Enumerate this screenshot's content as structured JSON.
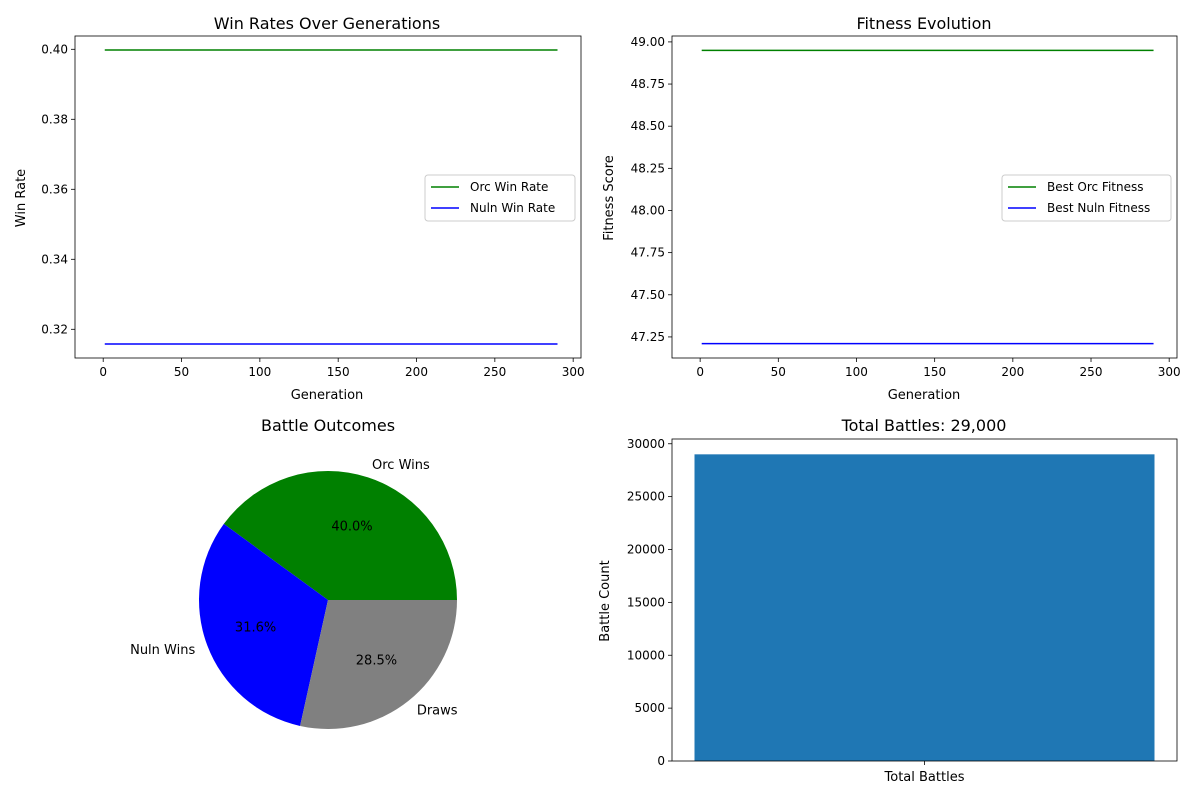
{
  "chart_data": [
    {
      "type": "line",
      "title": "Win Rates Over Generations",
      "xlabel": "Generation",
      "ylabel": "Win Rate",
      "xlim": [
        -18,
        305
      ],
      "ylim": [
        0.3118,
        0.4038
      ],
      "xticks": [
        0,
        50,
        100,
        150,
        200,
        250,
        300
      ],
      "yticks": [
        0.32,
        0.34,
        0.36,
        0.38,
        0.4
      ],
      "ytick_labels": [
        "0.32",
        "0.34",
        "0.36",
        "0.38",
        "0.40"
      ],
      "legend": "center-right",
      "series": [
        {
          "name": "Orc Win Rate",
          "color": "#008000",
          "x": [
            1,
            290
          ],
          "y": [
            0.3998,
            0.3998
          ]
        },
        {
          "name": "Nuln Win Rate",
          "color": "#0000ff",
          "x": [
            1,
            290
          ],
          "y": [
            0.3158,
            0.3158
          ]
        }
      ]
    },
    {
      "type": "line",
      "title": "Fitness Evolution",
      "xlabel": "Generation",
      "ylabel": "Fitness Score",
      "xlim": [
        -18,
        305
      ],
      "ylim": [
        47.125,
        49.035
      ],
      "xticks": [
        0,
        50,
        100,
        150,
        200,
        250,
        300
      ],
      "yticks": [
        47.25,
        47.5,
        47.75,
        48.0,
        48.25,
        48.5,
        48.75,
        49.0
      ],
      "ytick_labels": [
        "47.25",
        "47.50",
        "47.75",
        "48.00",
        "48.25",
        "48.50",
        "48.75",
        "49.00"
      ],
      "legend": "center-right",
      "series": [
        {
          "name": "Best Orc Fitness",
          "color": "#008000",
          "x": [
            1,
            290
          ],
          "y": [
            48.95,
            48.95
          ]
        },
        {
          "name": "Best Nuln Fitness",
          "color": "#0000ff",
          "x": [
            1,
            290
          ],
          "y": [
            47.21,
            47.21
          ]
        }
      ]
    },
    {
      "type": "pie",
      "title": "Battle Outcomes",
      "slices": [
        {
          "label": "Orc Wins",
          "value": 40.0,
          "pct": "40.0%",
          "color": "#008000"
        },
        {
          "label": "Nuln Wins",
          "value": 31.6,
          "pct": "31.6%",
          "color": "#0000ff"
        },
        {
          "label": "Draws",
          "value": 28.5,
          "pct": "28.5%",
          "color": "#808080"
        }
      ]
    },
    {
      "type": "bar",
      "title": "Total Battles: 29,000",
      "xlabel": "",
      "ylabel": "Battle Count",
      "categories": [
        "Total Battles"
      ],
      "values": [
        29000
      ],
      "color": "#1f77b4",
      "ylim": [
        0,
        30450
      ],
      "yticks": [
        0,
        5000,
        10000,
        15000,
        20000,
        25000,
        30000
      ]
    }
  ]
}
